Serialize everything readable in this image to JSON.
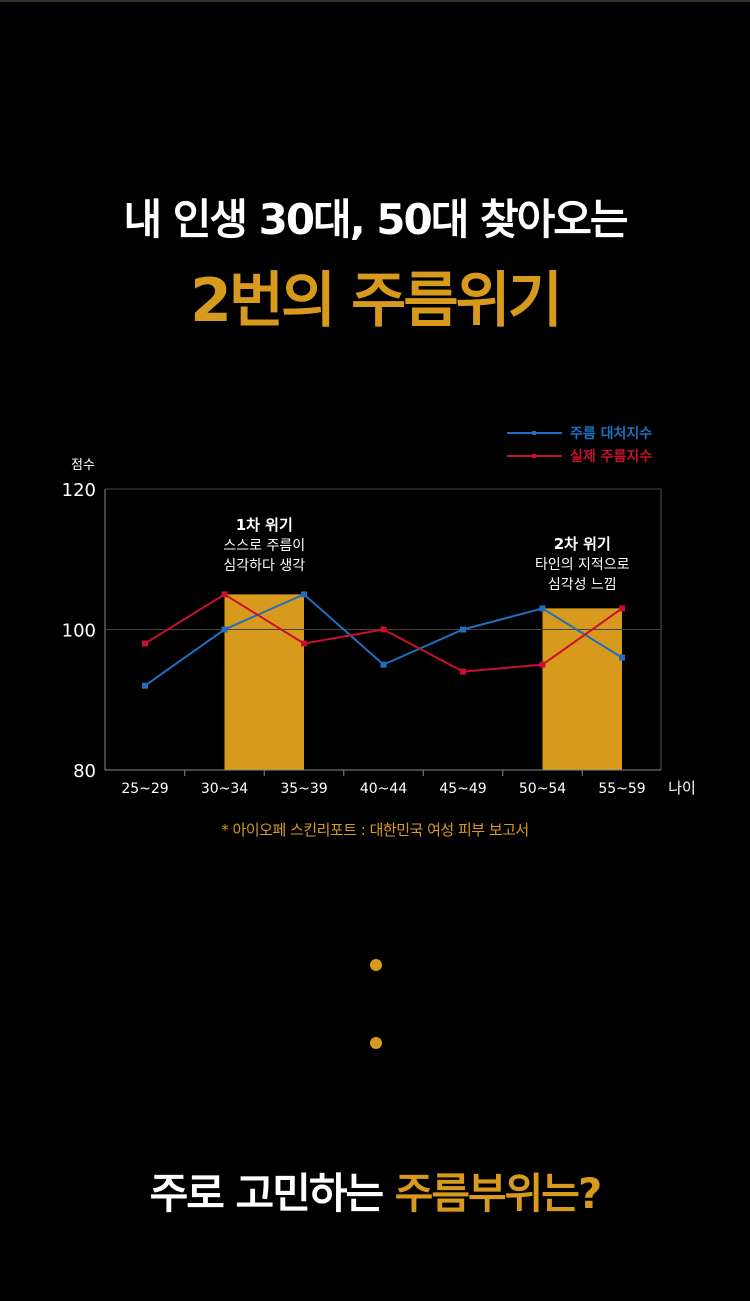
{
  "headline": "내 인생 30대, 50대 찾아오는",
  "headline_accent": "2번의 주름위기",
  "chart_data": {
    "type": "line",
    "categories": [
      "25~29",
      "30~34",
      "35~39",
      "40~44",
      "45~49",
      "50~54",
      "55~59"
    ],
    "series": [
      {
        "name": "주름 대처지수",
        "color": "#1f6fc0",
        "values": [
          92,
          100,
          105,
          95,
          100,
          103,
          96
        ]
      },
      {
        "name": "실제 주름지수",
        "color": "#c8102e",
        "values": [
          98,
          105,
          98,
          100,
          94,
          95,
          103
        ]
      }
    ],
    "ylabel": "점수",
    "xlabel": "나이",
    "ylim": [
      80,
      120
    ],
    "yticks": [
      80,
      100,
      120
    ],
    "grid": true,
    "legend_position": "top-right",
    "highlight_color": "#d89a1d",
    "crises": [
      {
        "title": "1차 위기",
        "lines": [
          "스스로 주름이",
          "심각하다 생각"
        ],
        "from": "30~34",
        "to": "35~39"
      },
      {
        "title": "2차 위기",
        "lines": [
          "타인의 지적으로",
          "심각성 느낌"
        ],
        "from": "50~54",
        "to": "55~59"
      }
    ]
  },
  "source_note": "* 아이오페 스킨리포트 : 대한민국 여성 피부 보고서",
  "question": {
    "text": "주로 고민하는 ",
    "accent": "주름부위는?"
  }
}
